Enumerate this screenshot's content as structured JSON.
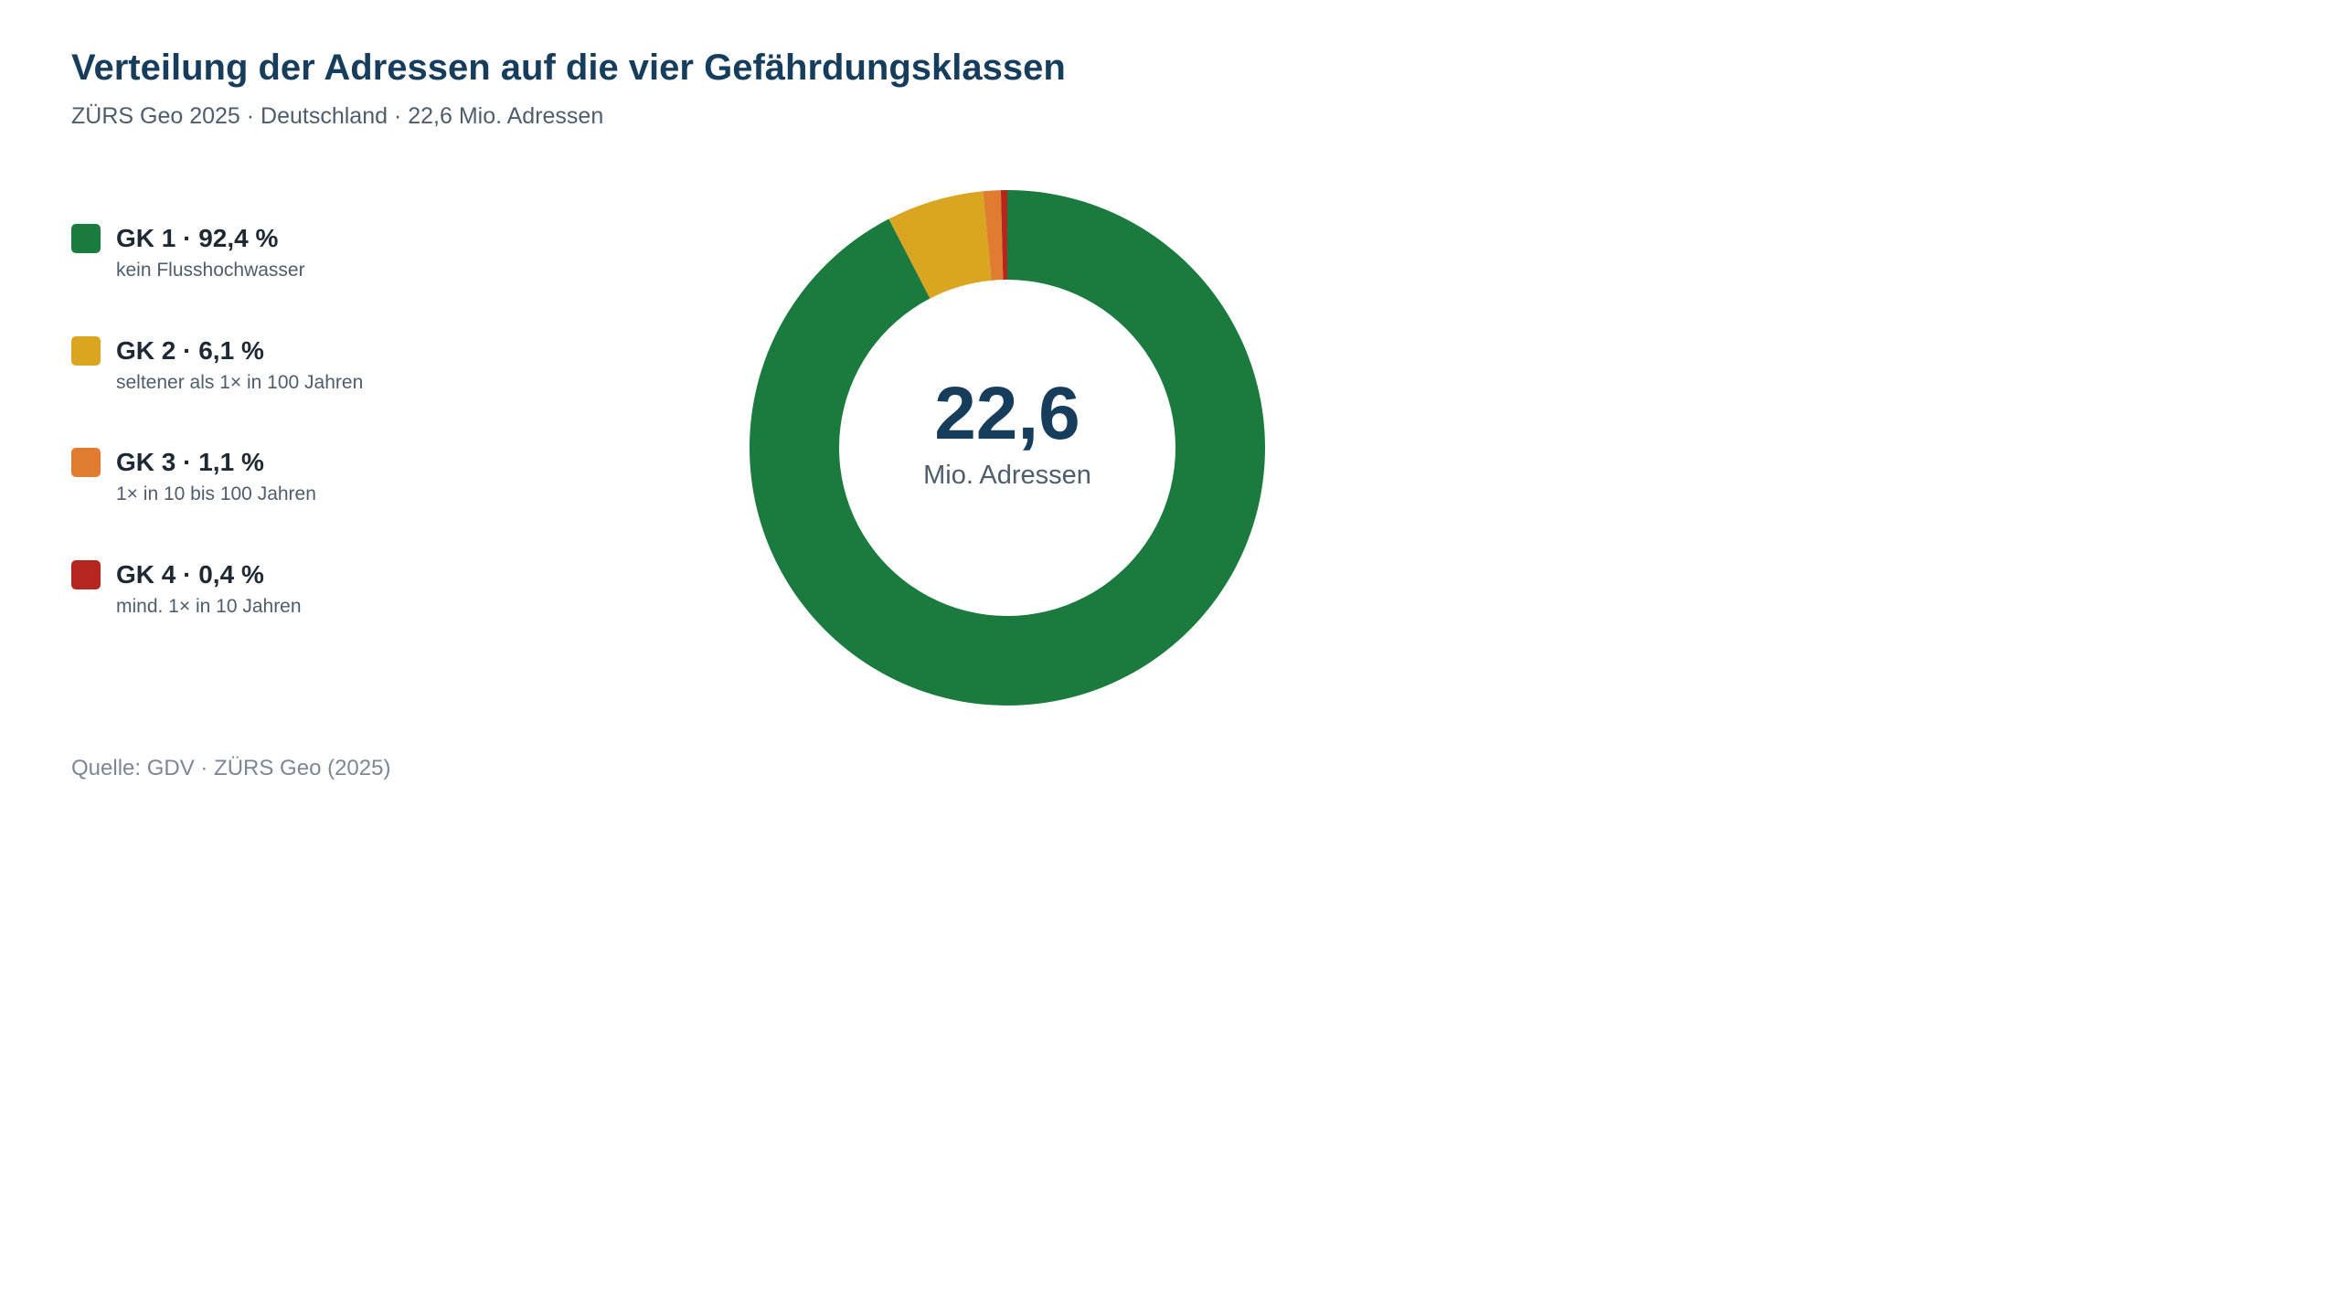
{
  "header": {
    "title": "Verteilung der Adressen auf die vier Gefährdungsklassen",
    "subtitle": "ZÜRS Geo 2025 · Deutschland · 22,6 Mio. Adressen"
  },
  "legend": [
    {
      "label": "GK 1 · 92,4 %",
      "description": "kein Flusshochwasser",
      "color": "#1b7b3f"
    },
    {
      "label": "GK 2 · 6,1 %",
      "description": "seltener als 1× in 100 Jahren",
      "color": "#daa520"
    },
    {
      "label": "GK 3 · 1,1 %",
      "description": "1× in 10 bis 100 Jahren",
      "color": "#e07b30"
    },
    {
      "label": "GK 4 · 0,4 %",
      "description": "mind. 1× in 10 Jahren",
      "color": "#b5261e"
    }
  ],
  "center": {
    "value": "22,6",
    "label": "Mio. Adressen"
  },
  "footer": {
    "source": "Quelle: GDV · ZÜRS Geo (2025)"
  },
  "chart_data": {
    "type": "pie",
    "variant": "donut",
    "title": "Verteilung der Adressen auf die vier Gefährdungsklassen",
    "subtitle": "ZÜRS Geo 2025 · Deutschland · 22,6 Mio. Adressen",
    "categories": [
      "GK 1",
      "GK 2",
      "GK 3",
      "GK 4"
    ],
    "values": [
      92.4,
      6.1,
      1.1,
      0.4
    ],
    "unit": "%",
    "colors": [
      "#1b7b3f",
      "#daa520",
      "#e07b30",
      "#b5261e"
    ],
    "legend_position": "left",
    "center_text": "22,6 Mio. Adressen"
  }
}
